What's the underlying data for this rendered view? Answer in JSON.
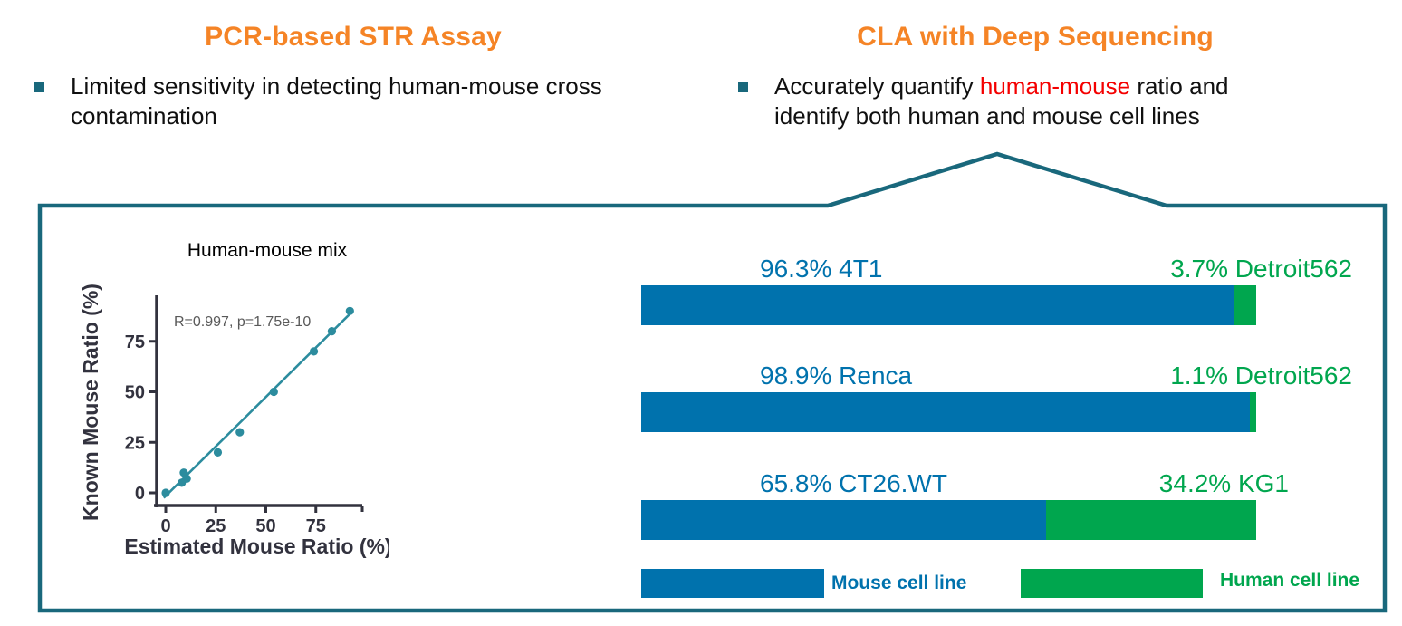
{
  "colors": {
    "orange": "#F58426",
    "teal": "#19687C",
    "red": "#F40000",
    "mouse_blue": "#0072AD",
    "human_green": "#00A64E",
    "axis_dark": "#32323E",
    "scatter_teal": "#2C8C9E",
    "annotation_gray": "#595959"
  },
  "left_panel": {
    "title": "PCR-based STR Assay",
    "bullet": {
      "line1": "Limited sensitivity in detecting human-mouse cross",
      "line2": "contamination"
    }
  },
  "right_panel": {
    "title": "CLA with Deep Sequencing",
    "bullet": {
      "pre": "Accurately quantify ",
      "highlight": "human-mouse",
      "post": " ratio and",
      "line2": "identify both human and mouse cell lines"
    }
  },
  "chart_data": [
    {
      "type": "scatter",
      "title": "Human-mouse mix",
      "xlabel": "Estimated Mouse Ratio (%)",
      "ylabel": "Known Mouse Ratio (%)",
      "annotation": "R=0.997, p=1.75e-10",
      "xticks": [
        0,
        25,
        50,
        75
      ],
      "yticks": [
        0,
        25,
        50,
        75
      ],
      "xlim": [
        -6,
        98
      ],
      "ylim": [
        -7,
        95
      ],
      "grid": false,
      "points": [
        [
          0,
          0
        ],
        [
          8,
          5
        ],
        [
          10.5,
          7
        ],
        [
          9,
          10
        ],
        [
          26,
          20
        ],
        [
          37,
          30
        ],
        [
          54,
          50
        ],
        [
          74,
          70
        ],
        [
          83,
          80
        ],
        [
          92,
          90
        ]
      ],
      "fit_line": {
        "x1": -1,
        "y1": -2.5,
        "x2": 93.5,
        "y2": 90
      }
    },
    {
      "type": "bar",
      "orientation": "horizontal-stacked",
      "rows": [
        {
          "mouse_pct": 96.3,
          "mouse_label": "96.3% 4T1",
          "human_pct": 3.7,
          "human_label": "3.7% Detroit562"
        },
        {
          "mouse_pct": 98.9,
          "mouse_label": "98.9% Renca",
          "human_pct": 1.1,
          "human_label": "1.1% Detroit562"
        },
        {
          "mouse_pct": 65.8,
          "mouse_label": "65.8% CT26.WT",
          "human_pct": 34.2,
          "human_label": "34.2% KG1"
        }
      ],
      "legend": [
        {
          "label": "Mouse cell line",
          "color": "#0072AD"
        },
        {
          "label": "Human cell line",
          "color": "#00A64E"
        }
      ]
    }
  ]
}
